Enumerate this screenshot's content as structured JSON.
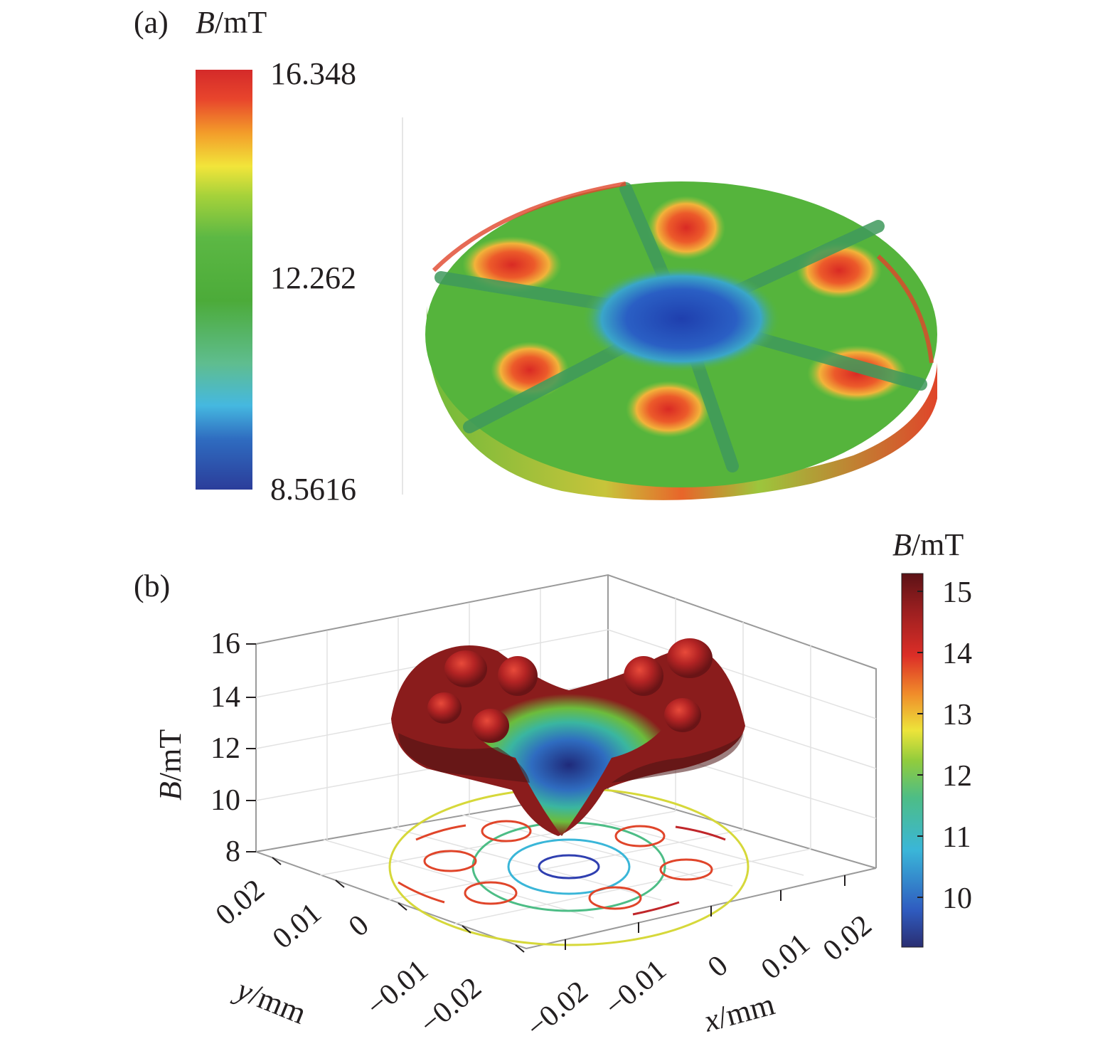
{
  "panel_a": {
    "label": "(a)",
    "colorbar_symbol": "B",
    "colorbar_unit": "/mT",
    "colorbar_ticks": [
      "16.348",
      "12.262",
      "8.5616"
    ],
    "colorbar_range": [
      8.5616,
      16.348
    ],
    "colormap": [
      "#2b3d9a",
      "#2f6cc0",
      "#45b8e0",
      "#5fbd8f",
      "#4cab39",
      "#5cb844",
      "#a6d23a",
      "#f2e53a",
      "#f39c2a",
      "#e8452c",
      "#d42a2a"
    ],
    "disk_colors": {
      "field": "#55b43c",
      "center": "#2548b5",
      "spokes": "#4a9a54",
      "hot_spots": "#e0372a"
    },
    "spoke_count": 6
  },
  "panel_b": {
    "label": "(b)",
    "colorbar_symbol": "B",
    "colorbar_unit": "/mT",
    "colorbar_ticks": [
      "15",
      "14",
      "13",
      "12",
      "11",
      "10"
    ],
    "colorbar_range": [
      9.3,
      15.3
    ],
    "colormap": [
      "#2a2e72",
      "#2f5cc0",
      "#3ab6d8",
      "#4dbd86",
      "#92cc3c",
      "#ede43a",
      "#f08a2a",
      "#dc2e27",
      "#9b1f20",
      "#5c1216"
    ],
    "z_axis": {
      "symbol": "B",
      "unit": "/mT",
      "ticks": [
        "16",
        "14",
        "12",
        "10",
        "8"
      ]
    },
    "y_axis": {
      "symbol": "y",
      "unit": "/mm",
      "ticks": [
        "0.02",
        "0.01",
        "0",
        "−0.01",
        "−0.02"
      ]
    },
    "x_axis": {
      "symbol": "x",
      "unit": "/mm",
      "ticks": [
        "−0.02",
        "−0.01",
        "0",
        "0.01",
        "0.02"
      ]
    },
    "surface_colors": {
      "rim": "#8a1c1c",
      "slope": "#4caf50",
      "well": "#1f2a7a"
    }
  }
}
